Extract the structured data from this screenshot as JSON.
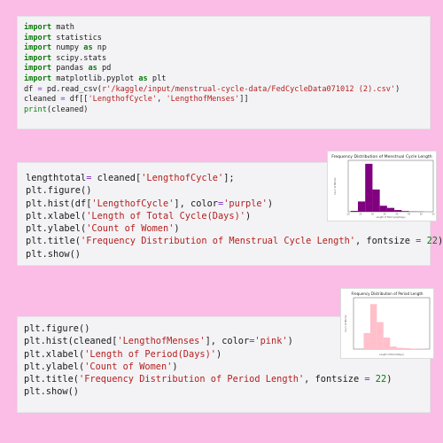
{
  "cells": [
    {
      "lines": [
        [
          {
            "t": "import",
            "c": "kw"
          },
          {
            "t": " math",
            "c": "fn"
          }
        ],
        [
          {
            "t": "import",
            "c": "kw"
          },
          {
            "t": " statistics",
            "c": "fn"
          }
        ],
        [
          {
            "t": "import",
            "c": "kw"
          },
          {
            "t": " numpy ",
            "c": "fn"
          },
          {
            "t": "as",
            "c": "kw"
          },
          {
            "t": " np",
            "c": "fn"
          }
        ],
        [
          {
            "t": "import",
            "c": "kw"
          },
          {
            "t": " scipy.stats",
            "c": "fn"
          }
        ],
        [
          {
            "t": "import",
            "c": "kw"
          },
          {
            "t": " pandas ",
            "c": "fn"
          },
          {
            "t": "as",
            "c": "kw"
          },
          {
            "t": " pd",
            "c": "fn"
          }
        ],
        [
          {
            "t": "import",
            "c": "kw"
          },
          {
            "t": " matplotlib.pyplot ",
            "c": "fn"
          },
          {
            "t": "as",
            "c": "kw"
          },
          {
            "t": " plt",
            "c": "fn"
          }
        ],
        [
          {
            "t": "df ",
            "c": "fn"
          },
          {
            "t": "=",
            "c": "op"
          },
          {
            "t": " pd.read_csv(",
            "c": "fn"
          },
          {
            "t": "r'/kaggle/input/menstrual-cycle-data/FedCycleData071012 (2).csv'",
            "c": "str"
          },
          {
            "t": ")",
            "c": "fn"
          }
        ],
        [
          {
            "t": "cleaned ",
            "c": "fn"
          },
          {
            "t": "=",
            "c": "op"
          },
          {
            "t": " df[[",
            "c": "fn"
          },
          {
            "t": "'LengthofCycle'",
            "c": "str"
          },
          {
            "t": ", ",
            "c": "fn"
          },
          {
            "t": "'LengthofMenses'",
            "c": "str"
          },
          {
            "t": "]]",
            "c": "fn"
          }
        ],
        [
          {
            "t": "print",
            "c": "builtin"
          },
          {
            "t": "(cleaned)",
            "c": "fn"
          }
        ]
      ]
    },
    {
      "lines": [
        [
          {
            "t": "lengthtotal",
            "c": "fn"
          },
          {
            "t": "=",
            "c": "op"
          },
          {
            "t": " cleaned[",
            "c": "fn"
          },
          {
            "t": "'LengthofCycle'",
            "c": "str"
          },
          {
            "t": "];",
            "c": "fn"
          }
        ],
        [
          {
            "t": "plt.figure()",
            "c": "fn"
          }
        ],
        [
          {
            "t": "plt.hist(df[",
            "c": "fn"
          },
          {
            "t": "'LengthofCycle'",
            "c": "str"
          },
          {
            "t": "], color",
            "c": "fn"
          },
          {
            "t": "=",
            "c": "op"
          },
          {
            "t": "'purple'",
            "c": "str"
          },
          {
            "t": ")",
            "c": "fn"
          }
        ],
        [
          {
            "t": "plt.xlabel(",
            "c": "fn"
          },
          {
            "t": "'Length of Total Cycle(Days)'",
            "c": "str"
          },
          {
            "t": ")",
            "c": "fn"
          }
        ],
        [
          {
            "t": "plt.ylabel(",
            "c": "fn"
          },
          {
            "t": "'Count of Women'",
            "c": "str"
          },
          {
            "t": ")",
            "c": "fn"
          }
        ],
        [
          {
            "t": "plt.title(",
            "c": "fn"
          },
          {
            "t": "'Frequency Distribution of Menstrual Cycle Length'",
            "c": "str"
          },
          {
            "t": ", fontsize ",
            "c": "fn"
          },
          {
            "t": "=",
            "c": "op"
          },
          {
            "t": " ",
            "c": "fn"
          },
          {
            "t": "22",
            "c": "num"
          },
          {
            "t": ")",
            "c": "fn"
          }
        ],
        [
          {
            "t": "plt.show()",
            "c": "fn"
          }
        ]
      ]
    },
    {
      "lines": [
        [
          {
            "t": "plt.figure()",
            "c": "fn"
          }
        ],
        [
          {
            "t": "plt.hist(cleaned[",
            "c": "fn"
          },
          {
            "t": "'LengthofMenses'",
            "c": "str"
          },
          {
            "t": "], color",
            "c": "fn"
          },
          {
            "t": "=",
            "c": "op"
          },
          {
            "t": "'pink'",
            "c": "str"
          },
          {
            "t": ")",
            "c": "fn"
          }
        ],
        [
          {
            "t": "plt.xlabel(",
            "c": "fn"
          },
          {
            "t": "'Length of Period(Days)'",
            "c": "str"
          },
          {
            "t": ")",
            "c": "fn"
          }
        ],
        [
          {
            "t": "plt.ylabel(",
            "c": "fn"
          },
          {
            "t": "'Count of Women'",
            "c": "str"
          },
          {
            "t": ")",
            "c": "fn"
          }
        ],
        [
          {
            "t": "plt.title(",
            "c": "fn"
          },
          {
            "t": "'Frequency Distribution of Period Length'",
            "c": "str"
          },
          {
            "t": ", fontsize ",
            "c": "fn"
          },
          {
            "t": "=",
            "c": "op"
          },
          {
            "t": " ",
            "c": "fn"
          },
          {
            "t": "22",
            "c": "num"
          },
          {
            "t": ")",
            "c": "fn"
          }
        ],
        [
          {
            "t": "plt.show()",
            "c": "fn"
          }
        ]
      ]
    }
  ],
  "colors": {
    "background": "#fbbce6",
    "keyword": "#0b7a0b",
    "string": "#b51f1f",
    "operator": "#7a2ec2"
  },
  "chart_data": [
    {
      "type": "bar",
      "title": "Frequency Distribution of Menstrual Cycle Length",
      "xlabel": "Length of Total Cycle(Days)",
      "ylabel": "Count of Women",
      "color": "#800080",
      "xlim": [
        20,
        55
      ],
      "ylim": [
        0,
        600
      ],
      "bins": [
        {
          "x0": 21.0,
          "x1": 24.0,
          "value": 10
        },
        {
          "x0": 24.0,
          "x1": 27.0,
          "value": 120
        },
        {
          "x0": 27.0,
          "x1": 30.0,
          "value": 560
        },
        {
          "x0": 30.0,
          "x1": 33.0,
          "value": 260
        },
        {
          "x0": 33.0,
          "x1": 36.0,
          "value": 70
        },
        {
          "x0": 36.0,
          "x1": 39.0,
          "value": 45
        },
        {
          "x0": 39.0,
          "x1": 42.0,
          "value": 20
        },
        {
          "x0": 42.0,
          "x1": 45.0,
          "value": 8
        },
        {
          "x0": 45.0,
          "x1": 48.0,
          "value": 3
        },
        {
          "x0": 48.0,
          "x1": 51.0,
          "value": 2
        }
      ],
      "xticks": [
        "20",
        "25",
        "30",
        "35",
        "40",
        "45",
        "50",
        "55"
      ],
      "grid": false
    },
    {
      "type": "bar",
      "title": "Frequency Distribution of Period Length",
      "xlabel": "Length of Period(Days)",
      "ylabel": "Count of Women",
      "color": "#ffc0cb",
      "xlim": [
        0,
        15
      ],
      "ylim": [
        0,
        800
      ],
      "bins": [
        {
          "x0": 2.0,
          "x1": 3.3,
          "value": 250
        },
        {
          "x0": 3.3,
          "x1": 4.6,
          "value": 700
        },
        {
          "x0": 4.6,
          "x1": 5.9,
          "value": 420
        },
        {
          "x0": 5.9,
          "x1": 7.2,
          "value": 180
        },
        {
          "x0": 7.2,
          "x1": 8.5,
          "value": 40
        },
        {
          "x0": 8.5,
          "x1": 9.8,
          "value": 20
        },
        {
          "x0": 9.8,
          "x1": 11.1,
          "value": 15
        },
        {
          "x0": 11.1,
          "x1": 12.4,
          "value": 8
        },
        {
          "x0": 12.4,
          "x1": 13.7,
          "value": 4
        },
        {
          "x0": 13.7,
          "x1": 15.0,
          "value": 2
        }
      ],
      "grid": false
    }
  ]
}
